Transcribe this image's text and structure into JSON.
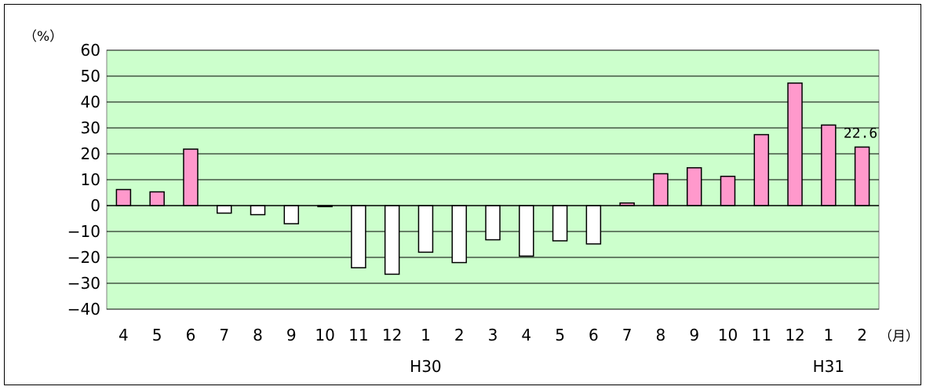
{
  "chart_data": {
    "type": "bar",
    "title": "",
    "y_unit": "（%）",
    "x_unit": "（月）",
    "ylim": [
      -40,
      60
    ],
    "y_ticks": [
      60,
      50,
      40,
      30,
      20,
      10,
      0,
      -10,
      -20,
      -30,
      -40
    ],
    "grid": true,
    "categories": [
      "4",
      "5",
      "6",
      "7",
      "8",
      "9",
      "10",
      "11",
      "12",
      "1",
      "2",
      "3",
      "4",
      "5",
      "6",
      "7",
      "8",
      "9",
      "10",
      "11",
      "12",
      "1",
      "2"
    ],
    "values": [
      6.2,
      5.3,
      21.8,
      -2.9,
      -3.5,
      -7.0,
      -0.4,
      -24.0,
      -26.5,
      -18.0,
      -22.0,
      -13.2,
      -19.5,
      -13.6,
      -14.8,
      1.0,
      12.3,
      14.6,
      11.3,
      27.4,
      47.3,
      31.1,
      22.6
    ],
    "group_labels": [
      {
        "label": "H30",
        "category_index": 9
      },
      {
        "label": "H31",
        "category_index": 21
      }
    ],
    "annotations": [
      {
        "category_index": 22,
        "text": "22.6"
      }
    ],
    "colors": {
      "plot_background": "#ccffcc",
      "positive_bar": "#ff99cc",
      "negative_bar": "#ffffff",
      "bar_stroke": "#000000",
      "grid": "#000000"
    }
  }
}
